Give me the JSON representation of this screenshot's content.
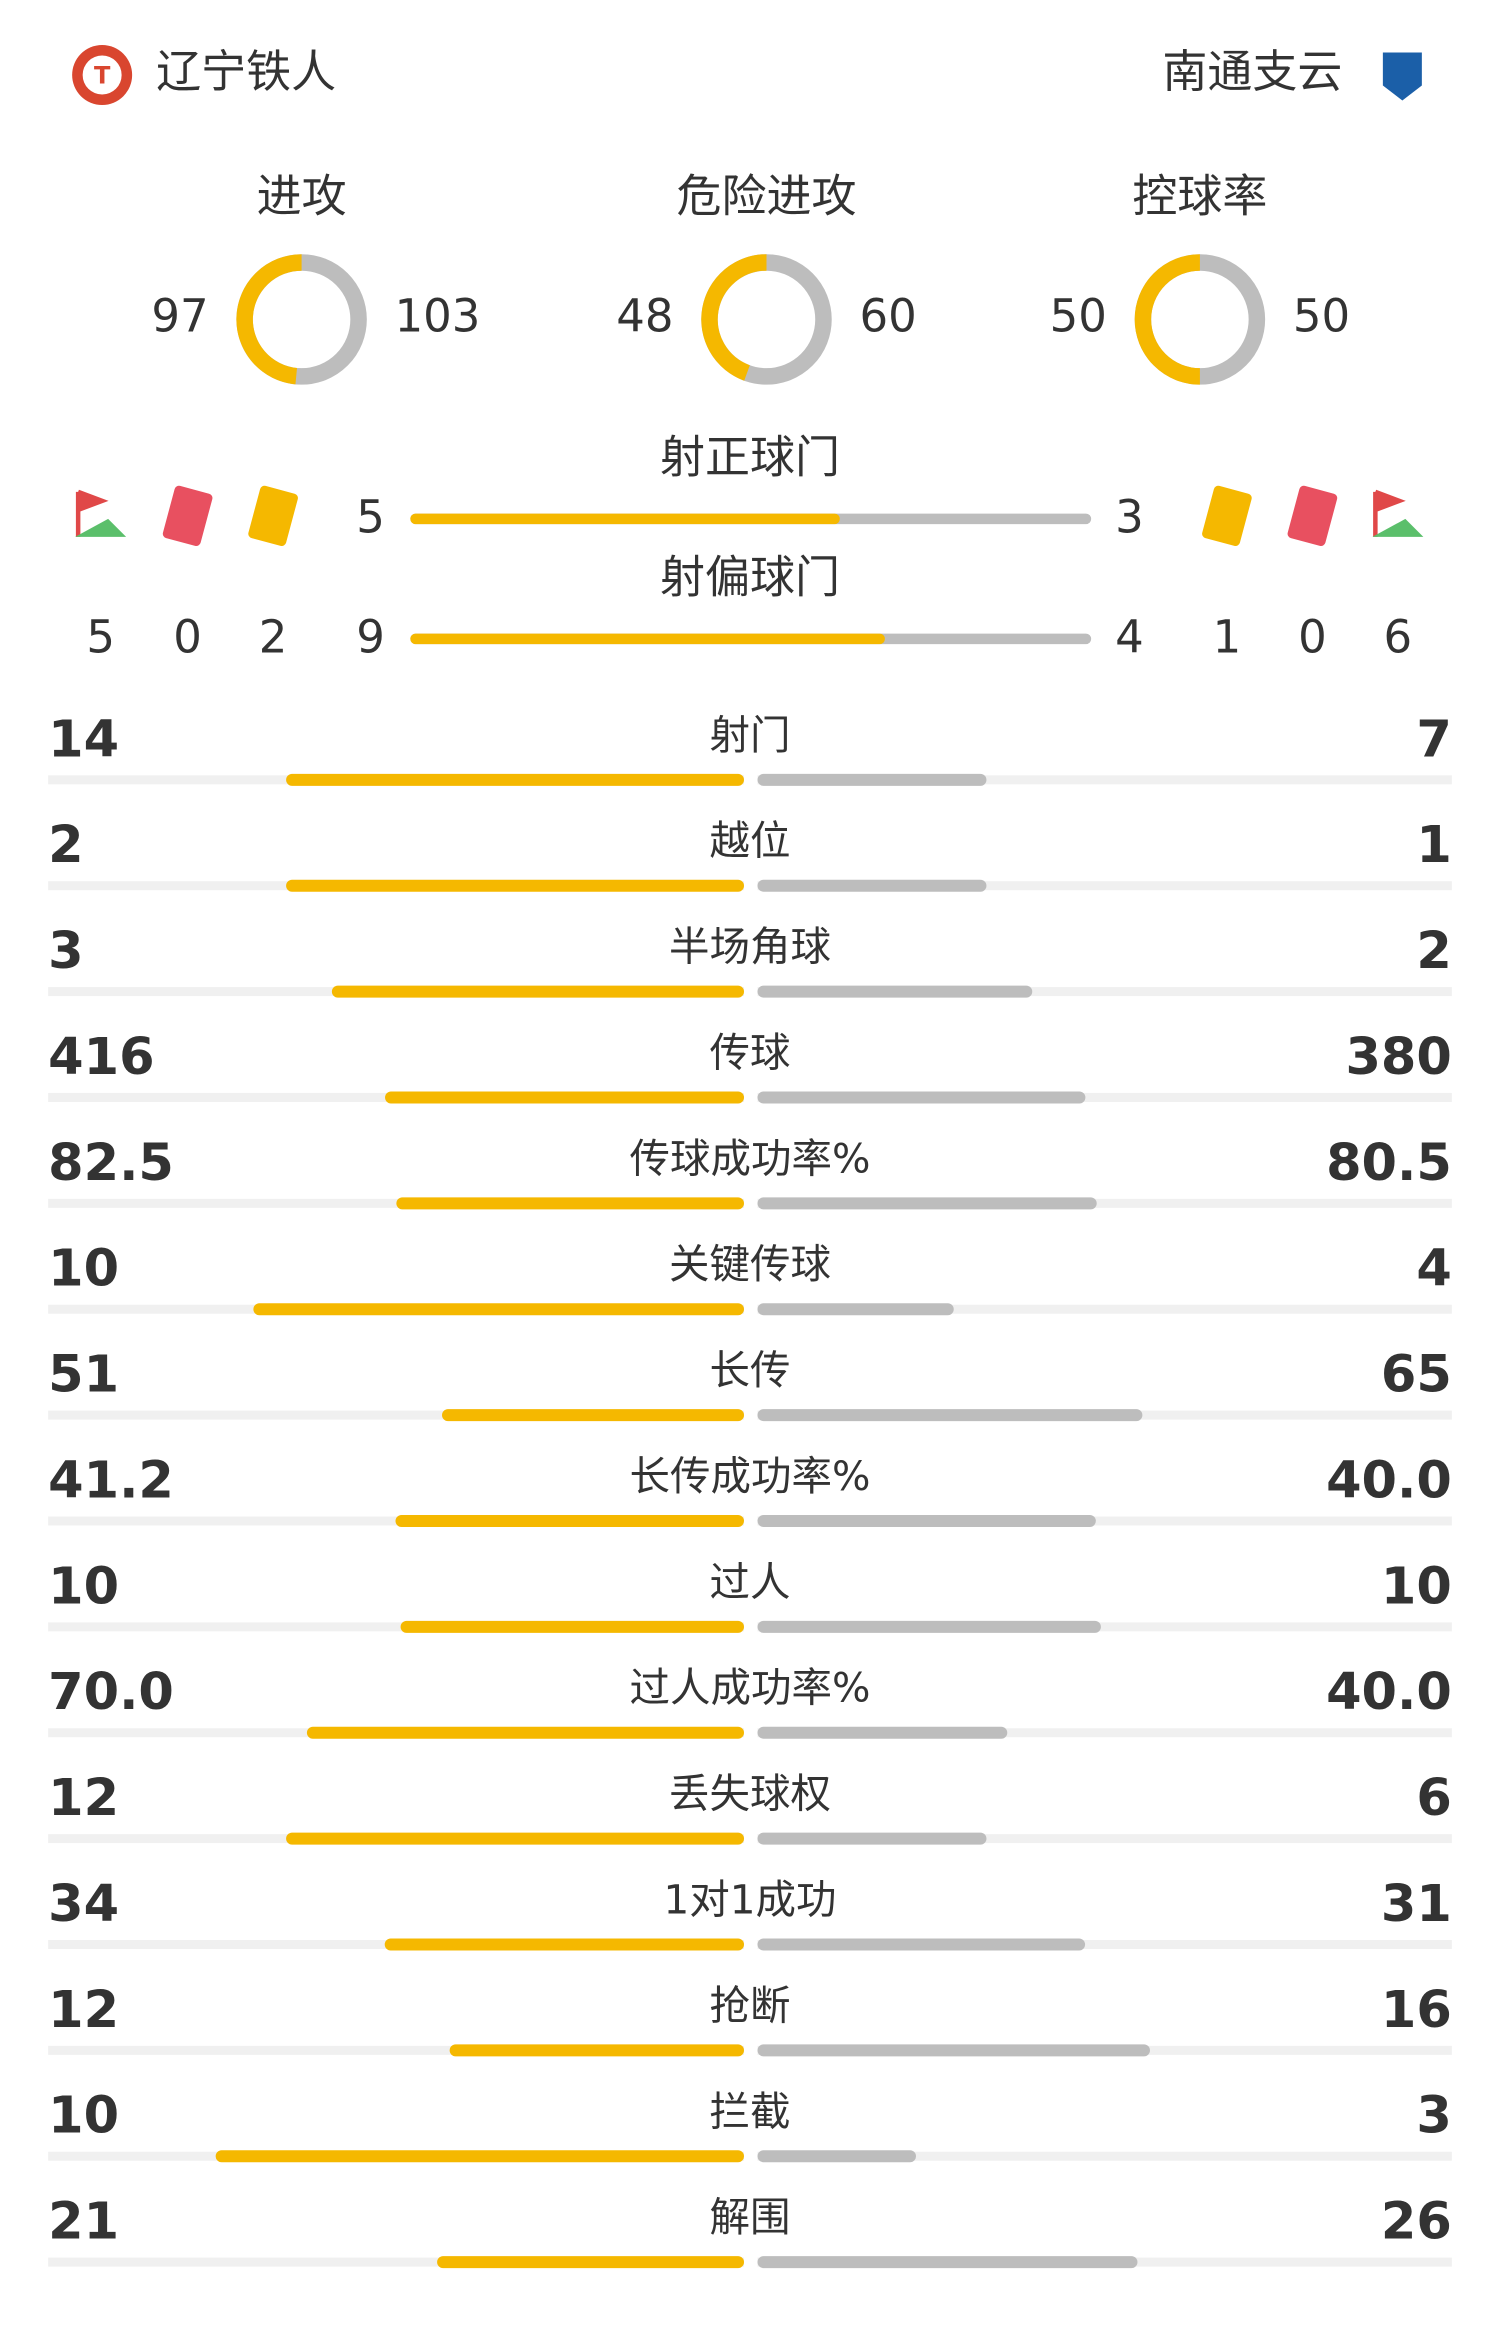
{
  "teams": {
    "home": "辽宁铁人",
    "away": "南通支云"
  },
  "rings": [
    {
      "label": "进攻",
      "home": 97,
      "away": 103
    },
    {
      "label": "危险进攻",
      "home": 48,
      "away": 60
    },
    {
      "label": "控球率",
      "home": 50,
      "away": 50
    }
  ],
  "shots": [
    {
      "label": "射正球门",
      "home": 5,
      "away": 3
    },
    {
      "label": "射偏球门",
      "home": 9,
      "away": 4
    }
  ],
  "discipline": {
    "home": {
      "corners": 5,
      "red": 0,
      "yellow": 2
    },
    "away": {
      "yellow": 1,
      "red": 0,
      "corners": 6
    }
  },
  "stats": [
    {
      "label": "射门",
      "home": 14,
      "away": 7
    },
    {
      "label": "越位",
      "home": 2,
      "away": 1
    },
    {
      "label": "半场角球",
      "home": 3,
      "away": 2
    },
    {
      "label": "传球",
      "home": 416,
      "away": 380
    },
    {
      "label": "传球成功率%",
      "home": 82.5,
      "away": 80.5
    },
    {
      "label": "关键传球",
      "home": 10,
      "away": 4
    },
    {
      "label": "长传",
      "home": 51,
      "away": 65
    },
    {
      "label": "长传成功率%",
      "home": 41.2,
      "away": {
        "value": 40,
        "label": "40.0"
      }
    },
    {
      "label": "过人",
      "home": 10,
      "away": 10
    },
    {
      "label": "过人成功率%",
      "home": {
        "value": 70,
        "label": "70.0"
      },
      "away": {
        "value": 40,
        "label": "40.0"
      }
    },
    {
      "label": "丢失球权",
      "home": 12,
      "away": 6
    },
    {
      "label": "1对1成功",
      "home": 34,
      "away": 31
    },
    {
      "label": "抢断",
      "home": 12,
      "away": 16
    },
    {
      "label": "拦截",
      "home": 10,
      "away": 3
    },
    {
      "label": "解围",
      "home": 21,
      "away": 26
    }
  ]
}
